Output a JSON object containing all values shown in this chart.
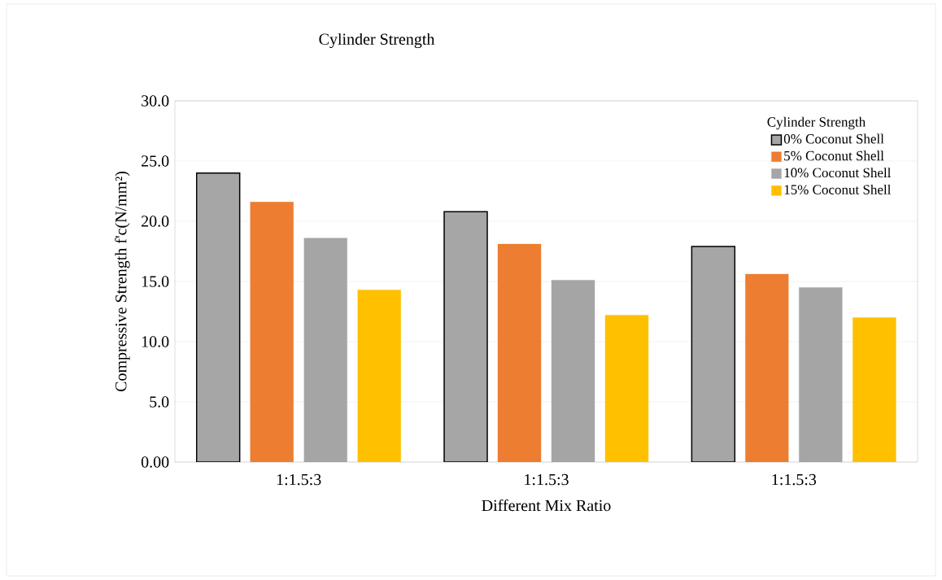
{
  "chart_data": {
    "type": "bar",
    "title": "Cylinder Strength",
    "xlabel": "Different Mix Ratio",
    "ylabel": "Compressive Strength f'c(N/mm²)",
    "legend_title": "Cylinder Strength",
    "categories": [
      "1:1.5:3",
      "1:1.5:3",
      "1:1.5:3"
    ],
    "series": [
      {
        "name": "0% Coconut Shell",
        "color": "#a6a6a6",
        "values": [
          24.0,
          20.8,
          17.9
        ]
      },
      {
        "name": "5% Coconut Shell",
        "color": "#ed7d31",
        "values": [
          21.6,
          18.1,
          15.6
        ]
      },
      {
        "name": "10% Coconut Shell",
        "color": "#a5a5a5",
        "values": [
          18.6,
          15.1,
          14.5
        ]
      },
      {
        "name": "15% Coconut Shell",
        "color": "#ffc000",
        "values": [
          14.3,
          12.2,
          12.0
        ]
      }
    ],
    "ylim": [
      0,
      30
    ],
    "yticks": [
      {
        "value": 0,
        "label": "0.00"
      },
      {
        "value": 5,
        "label": "5.0"
      },
      {
        "value": 10,
        "label": "10.0"
      },
      {
        "value": 15,
        "label": "15.0"
      },
      {
        "value": 20,
        "label": "20.0"
      },
      {
        "value": 25,
        "label": "25.0"
      },
      {
        "value": 30,
        "label": "30.0"
      }
    ],
    "grid": "y",
    "legend": "top right"
  }
}
